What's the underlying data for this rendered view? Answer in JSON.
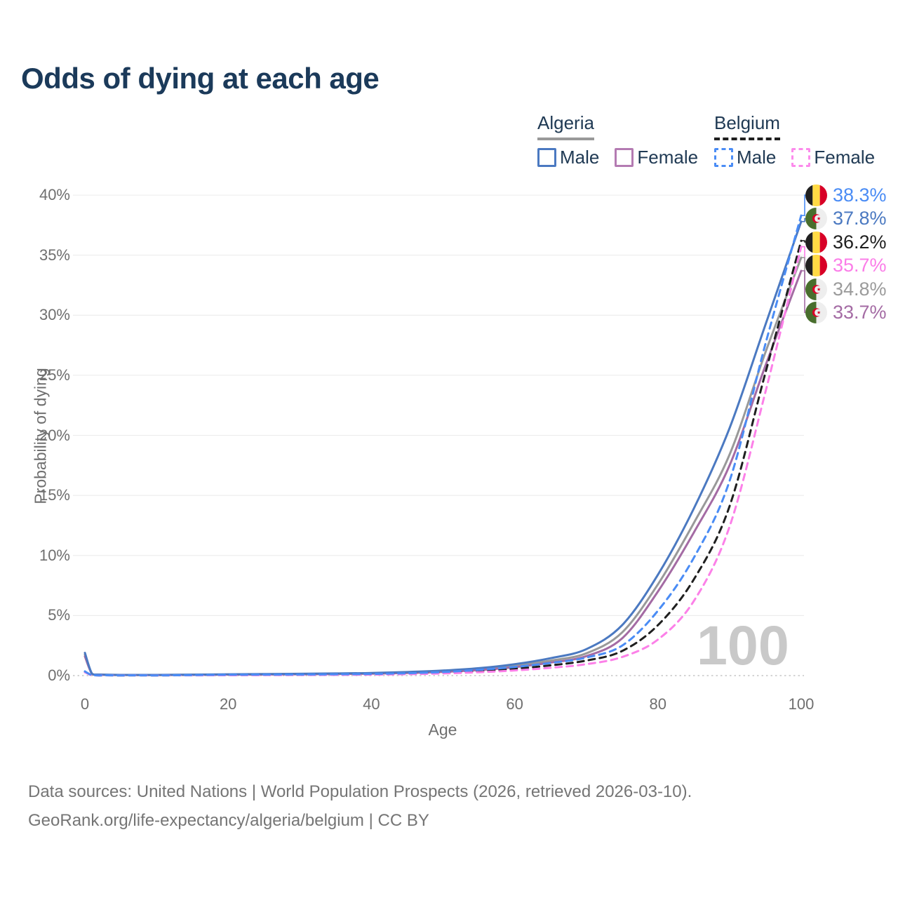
{
  "header": {
    "title": "Odds of dying at each age"
  },
  "legend": {
    "groups": [
      {
        "label": "Algeria",
        "line_style": "solid",
        "line_color": "#999999",
        "items": [
          {
            "label": "Male",
            "color": "#4B79C1",
            "style": "solid"
          },
          {
            "label": "Female",
            "color": "#B47BB2",
            "style": "solid"
          }
        ]
      },
      {
        "label": "Belgium",
        "line_style": "dashed",
        "line_color": "#1F1F1F",
        "items": [
          {
            "label": "Male",
            "color": "#4A8CF5",
            "style": "dashed"
          },
          {
            "label": "Female",
            "color": "#FC8BEC",
            "style": "dashed"
          }
        ]
      }
    ]
  },
  "footer": {
    "line1": "Data sources: United Nations | World Population Prospects (2026, retrieved 2026-03-10).",
    "line2": "GeoRank.org/life-expectancy/algeria/belgium | CC BY"
  },
  "chart_data": {
    "type": "line",
    "title": "Odds of dying at each age",
    "xlabel": "Age",
    "ylabel": "Probability of dying",
    "xlim": [
      0,
      100
    ],
    "ylim_percent": [
      0,
      40
    ],
    "xticks": [
      0,
      20,
      40,
      60,
      80,
      100
    ],
    "ytick_labels": [
      "0%",
      "5%",
      "10%",
      "15%",
      "20%",
      "25%",
      "30%",
      "35%",
      "40%"
    ],
    "ytick_percent": [
      0,
      5,
      10,
      15,
      20,
      25,
      30,
      35,
      40
    ],
    "grid": "horizontal",
    "legend_position": "top-right",
    "watermark": "100",
    "series": [
      {
        "id": "algeria-all",
        "name": "Algeria",
        "country": "Algeria",
        "sex": "All",
        "color": "#999999",
        "dash": "solid",
        "end_label": "34.8%",
        "end_value_percent": 34.8,
        "points": [
          [
            0,
            1.75
          ],
          [
            1,
            0.14
          ],
          [
            2,
            0.08
          ],
          [
            5,
            0.05
          ],
          [
            10,
            0.05
          ],
          [
            15,
            0.07
          ],
          [
            20,
            0.09
          ],
          [
            25,
            0.11
          ],
          [
            30,
            0.13
          ],
          [
            35,
            0.16
          ],
          [
            40,
            0.19
          ],
          [
            45,
            0.26
          ],
          [
            50,
            0.37
          ],
          [
            55,
            0.54
          ],
          [
            60,
            0.82
          ],
          [
            65,
            1.25
          ],
          [
            70,
            1.85
          ],
          [
            75,
            3.6
          ],
          [
            80,
            7.6
          ],
          [
            85,
            12.7
          ],
          [
            90,
            18.4
          ],
          [
            95,
            26.9
          ],
          [
            100,
            34.8
          ]
        ]
      },
      {
        "id": "algeria-female",
        "name": "Algeria Female",
        "country": "Algeria",
        "sex": "Female",
        "color": "#A46BA4",
        "dash": "solid",
        "end_label": "33.7%",
        "end_value_percent": 33.7,
        "points": [
          [
            0,
            1.6
          ],
          [
            1,
            0.13
          ],
          [
            2,
            0.07
          ],
          [
            5,
            0.05
          ],
          [
            10,
            0.04
          ],
          [
            15,
            0.06
          ],
          [
            20,
            0.08
          ],
          [
            25,
            0.09
          ],
          [
            30,
            0.11
          ],
          [
            35,
            0.13
          ],
          [
            40,
            0.16
          ],
          [
            45,
            0.22
          ],
          [
            50,
            0.31
          ],
          [
            55,
            0.46
          ],
          [
            60,
            0.7
          ],
          [
            65,
            1.08
          ],
          [
            70,
            1.62
          ],
          [
            75,
            3.1
          ],
          [
            80,
            7.0
          ],
          [
            85,
            11.9
          ],
          [
            90,
            17.5
          ],
          [
            95,
            25.8
          ],
          [
            100,
            33.7
          ]
        ]
      },
      {
        "id": "algeria-male",
        "name": "Algeria Male",
        "country": "Algeria",
        "sex": "Male",
        "color": "#4B79C1",
        "dash": "solid",
        "end_label": "37.8%",
        "end_value_percent": 37.8,
        "points": [
          [
            0,
            1.9
          ],
          [
            1,
            0.16
          ],
          [
            2,
            0.09
          ],
          [
            5,
            0.06
          ],
          [
            10,
            0.06
          ],
          [
            15,
            0.08
          ],
          [
            20,
            0.11
          ],
          [
            25,
            0.13
          ],
          [
            30,
            0.15
          ],
          [
            35,
            0.18
          ],
          [
            40,
            0.22
          ],
          [
            45,
            0.3
          ],
          [
            50,
            0.42
          ],
          [
            55,
            0.62
          ],
          [
            60,
            0.95
          ],
          [
            65,
            1.45
          ],
          [
            70,
            2.2
          ],
          [
            75,
            4.2
          ],
          [
            80,
            8.4
          ],
          [
            85,
            13.9
          ],
          [
            90,
            20.6
          ],
          [
            95,
            29.2
          ],
          [
            100,
            37.8
          ]
        ]
      },
      {
        "id": "belgium-all",
        "name": "Belgium",
        "country": "Belgium",
        "sex": "All",
        "color": "#1F1F1F",
        "dash": "dashed",
        "end_label": "36.2%",
        "end_value_percent": 36.2,
        "points": [
          [
            0,
            0.3
          ],
          [
            1,
            0.03
          ],
          [
            2,
            0.02
          ],
          [
            5,
            0.01
          ],
          [
            10,
            0.01
          ],
          [
            15,
            0.03
          ],
          [
            20,
            0.05
          ],
          [
            25,
            0.06
          ],
          [
            30,
            0.07
          ],
          [
            35,
            0.09
          ],
          [
            40,
            0.11
          ],
          [
            45,
            0.16
          ],
          [
            50,
            0.24
          ],
          [
            55,
            0.38
          ],
          [
            60,
            0.57
          ],
          [
            65,
            0.85
          ],
          [
            70,
            1.25
          ],
          [
            75,
            2.05
          ],
          [
            80,
            4.2
          ],
          [
            85,
            8.0
          ],
          [
            90,
            14.1
          ],
          [
            95,
            25.2
          ],
          [
            100,
            36.2
          ]
        ]
      },
      {
        "id": "belgium-female",
        "name": "Belgium Female",
        "country": "Belgium",
        "sex": "Female",
        "color": "#FC80E8",
        "dash": "dashed",
        "end_label": "35.7%",
        "end_value_percent": 35.7,
        "points": [
          [
            0,
            0.28
          ],
          [
            1,
            0.02
          ],
          [
            2,
            0.01
          ],
          [
            5,
            0.01
          ],
          [
            10,
            0.01
          ],
          [
            15,
            0.02
          ],
          [
            20,
            0.03
          ],
          [
            25,
            0.04
          ],
          [
            30,
            0.05
          ],
          [
            35,
            0.06
          ],
          [
            40,
            0.08
          ],
          [
            45,
            0.12
          ],
          [
            50,
            0.18
          ],
          [
            55,
            0.28
          ],
          [
            60,
            0.43
          ],
          [
            65,
            0.65
          ],
          [
            70,
            0.95
          ],
          [
            75,
            1.55
          ],
          [
            80,
            3.0
          ],
          [
            85,
            6.2
          ],
          [
            90,
            12.4
          ],
          [
            95,
            23.6
          ],
          [
            100,
            35.7
          ]
        ]
      },
      {
        "id": "belgium-male",
        "name": "Belgium Male",
        "country": "Belgium",
        "sex": "Male",
        "color": "#4A8CF5",
        "dash": "dashed",
        "end_label": "38.3%",
        "end_value_percent": 38.3,
        "points": [
          [
            0,
            0.35
          ],
          [
            1,
            0.03
          ],
          [
            2,
            0.02
          ],
          [
            5,
            0.01
          ],
          [
            10,
            0.01
          ],
          [
            15,
            0.04
          ],
          [
            20,
            0.07
          ],
          [
            25,
            0.08
          ],
          [
            30,
            0.09
          ],
          [
            35,
            0.11
          ],
          [
            40,
            0.14
          ],
          [
            45,
            0.2
          ],
          [
            50,
            0.3
          ],
          [
            55,
            0.48
          ],
          [
            60,
            0.72
          ],
          [
            65,
            1.05
          ],
          [
            70,
            1.5
          ],
          [
            75,
            2.5
          ],
          [
            80,
            5.4
          ],
          [
            85,
            9.8
          ],
          [
            90,
            16.2
          ],
          [
            95,
            27.6
          ],
          [
            100,
            38.3
          ]
        ]
      }
    ],
    "end_labels": [
      {
        "series": "Belgium Male",
        "flag": "belgium",
        "value": "38.3%",
        "value_percent": 38.3,
        "color": "#4A8CF5"
      },
      {
        "series": "Algeria Male",
        "flag": "algeria",
        "value": "37.8%",
        "value_percent": 37.8,
        "color": "#4B79C1"
      },
      {
        "series": "Belgium",
        "flag": "belgium",
        "value": "36.2%",
        "value_percent": 36.2,
        "color": "#1F1F1F"
      },
      {
        "series": "Belgium Female",
        "flag": "belgium",
        "value": "35.7%",
        "value_percent": 35.7,
        "color": "#FB7DE8"
      },
      {
        "series": "Algeria",
        "flag": "algeria",
        "value": "34.8%",
        "value_percent": 34.8,
        "color": "#9B9B9B"
      },
      {
        "series": "Algeria Female",
        "flag": "algeria",
        "value": "33.7%",
        "value_percent": 33.7,
        "color": "#A46BA4"
      }
    ],
    "flag_colors": {
      "belgium": {
        "black": "#202020",
        "yellow": "#FFDA44",
        "red": "#D80027"
      },
      "algeria": {
        "green": "#496E2D",
        "white": "#EEEEEE",
        "red": "#D80027"
      }
    }
  }
}
